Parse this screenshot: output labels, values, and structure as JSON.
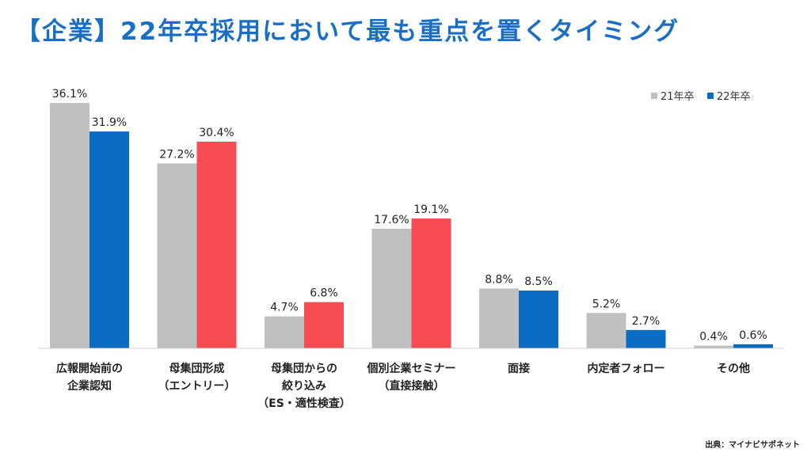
{
  "chart_data": {
    "type": "bar",
    "title": "【企業】22年卒採用において最も重点を置くタイミング",
    "categories": [
      [
        "広報開始前の",
        "企業認知"
      ],
      [
        "母集団形成",
        "（エントリー）"
      ],
      [
        "母集団からの",
        "絞り込み",
        "（ES・適性検査）"
      ],
      [
        "個別企業セミナー",
        "（直接接触）"
      ],
      [
        "面接"
      ],
      [
        "内定者フォロー"
      ],
      [
        "その他"
      ]
    ],
    "series": [
      {
        "name": "21年卒",
        "values": [
          36.1,
          27.2,
          4.7,
          17.6,
          8.8,
          5.2,
          0.4
        ]
      },
      {
        "name": "22年卒",
        "values": [
          31.9,
          30.4,
          6.8,
          19.1,
          8.5,
          2.7,
          0.6
        ]
      }
    ],
    "value_labels": [
      [
        "36.1%",
        "27.2%",
        "4.7%",
        "17.6%",
        "8.8%",
        "5.2%",
        "0.4%"
      ],
      [
        "31.9%",
        "30.4%",
        "6.8%",
        "19.1%",
        "8.5%",
        "2.7%",
        "0.6%"
      ]
    ],
    "ylim": [
      0,
      36.1
    ],
    "grid": false,
    "legend_position": "top-right",
    "colors": {
      "series1": "#c0c0c0",
      "series2_blue": "#0a6cc2",
      "series2_highlight": "#f64c52",
      "title": "#1a6fc4",
      "axis": "#d0d0d0"
    },
    "highlight_indices": [
      1,
      2,
      3
    ]
  },
  "source": "出典：マイナビサポネット"
}
